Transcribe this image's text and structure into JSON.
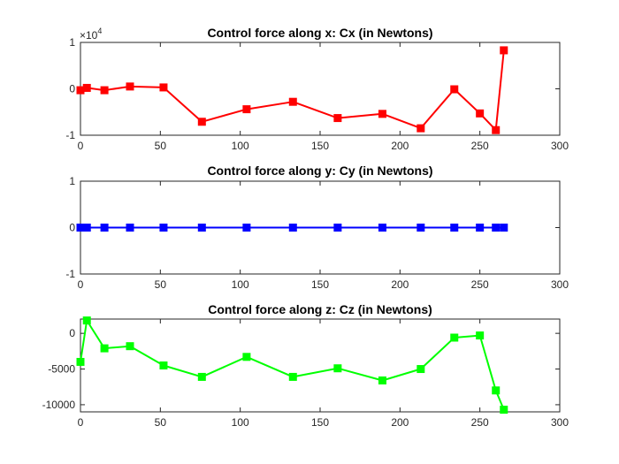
{
  "chart_data": [
    {
      "type": "line",
      "title": "Control force along x: Cx (in Newtons)",
      "xlabel": "",
      "ylabel": "",
      "xlim": [
        0,
        300
      ],
      "ylim": [
        -10000,
        10000
      ],
      "xticks": [
        0,
        50,
        100,
        150,
        200,
        250,
        300
      ],
      "yticks": [
        -10000,
        0,
        10000
      ],
      "ytick_labels": [
        "-1",
        "0",
        "1"
      ],
      "y_exponent_label": {
        "base": "×10",
        "exp": "4"
      },
      "grid": false,
      "marker": "square",
      "color": "#ff0000",
      "series": [
        {
          "x": [
            0,
            4,
            15,
            31,
            52,
            76,
            104,
            133,
            161,
            189,
            213,
            234,
            250,
            260,
            265
          ],
          "y": [
            -300,
            200,
            -300,
            500,
            300,
            -7100,
            -4400,
            -2800,
            -6300,
            -5400,
            -8500,
            -100,
            -5300,
            -8900,
            8300
          ]
        }
      ]
    },
    {
      "type": "line",
      "title": "Control force along y: Cy (in Newtons)",
      "xlabel": "",
      "ylabel": "",
      "xlim": [
        0,
        300
      ],
      "ylim": [
        -1,
        1
      ],
      "xticks": [
        0,
        50,
        100,
        150,
        200,
        250,
        300
      ],
      "yticks": [
        -1,
        0,
        1
      ],
      "ytick_labels": [
        "-1",
        "0",
        "1"
      ],
      "grid": false,
      "marker": "square",
      "color": "#0000ff",
      "series": [
        {
          "x": [
            0,
            4,
            15,
            31,
            52,
            76,
            104,
            133,
            161,
            189,
            213,
            234,
            250,
            260,
            265
          ],
          "y": [
            0,
            0,
            0,
            0,
            0,
            0,
            0,
            0,
            0,
            0,
            0,
            0,
            0,
            0,
            0
          ]
        }
      ]
    },
    {
      "type": "line",
      "title": "Control force along z: Cz (in Newtons)",
      "xlabel": "",
      "ylabel": "",
      "xlim": [
        0,
        300
      ],
      "ylim": [
        -11000,
        2000
      ],
      "xticks": [
        0,
        50,
        100,
        150,
        200,
        250,
        300
      ],
      "yticks": [
        -10000,
        -5000,
        0
      ],
      "ytick_labels": [
        "-10000",
        "-5000",
        "0"
      ],
      "grid": false,
      "marker": "square",
      "color": "#00ff00",
      "series": [
        {
          "x": [
            0,
            4,
            15,
            31,
            52,
            76,
            104,
            133,
            161,
            189,
            213,
            234,
            250,
            260,
            265
          ],
          "y": [
            -4000,
            1800,
            -2100,
            -1800,
            -4500,
            -6100,
            -3300,
            -6100,
            -4900,
            -6600,
            -5000,
            -600,
            -300,
            -8000,
            -10700
          ]
        }
      ]
    }
  ]
}
